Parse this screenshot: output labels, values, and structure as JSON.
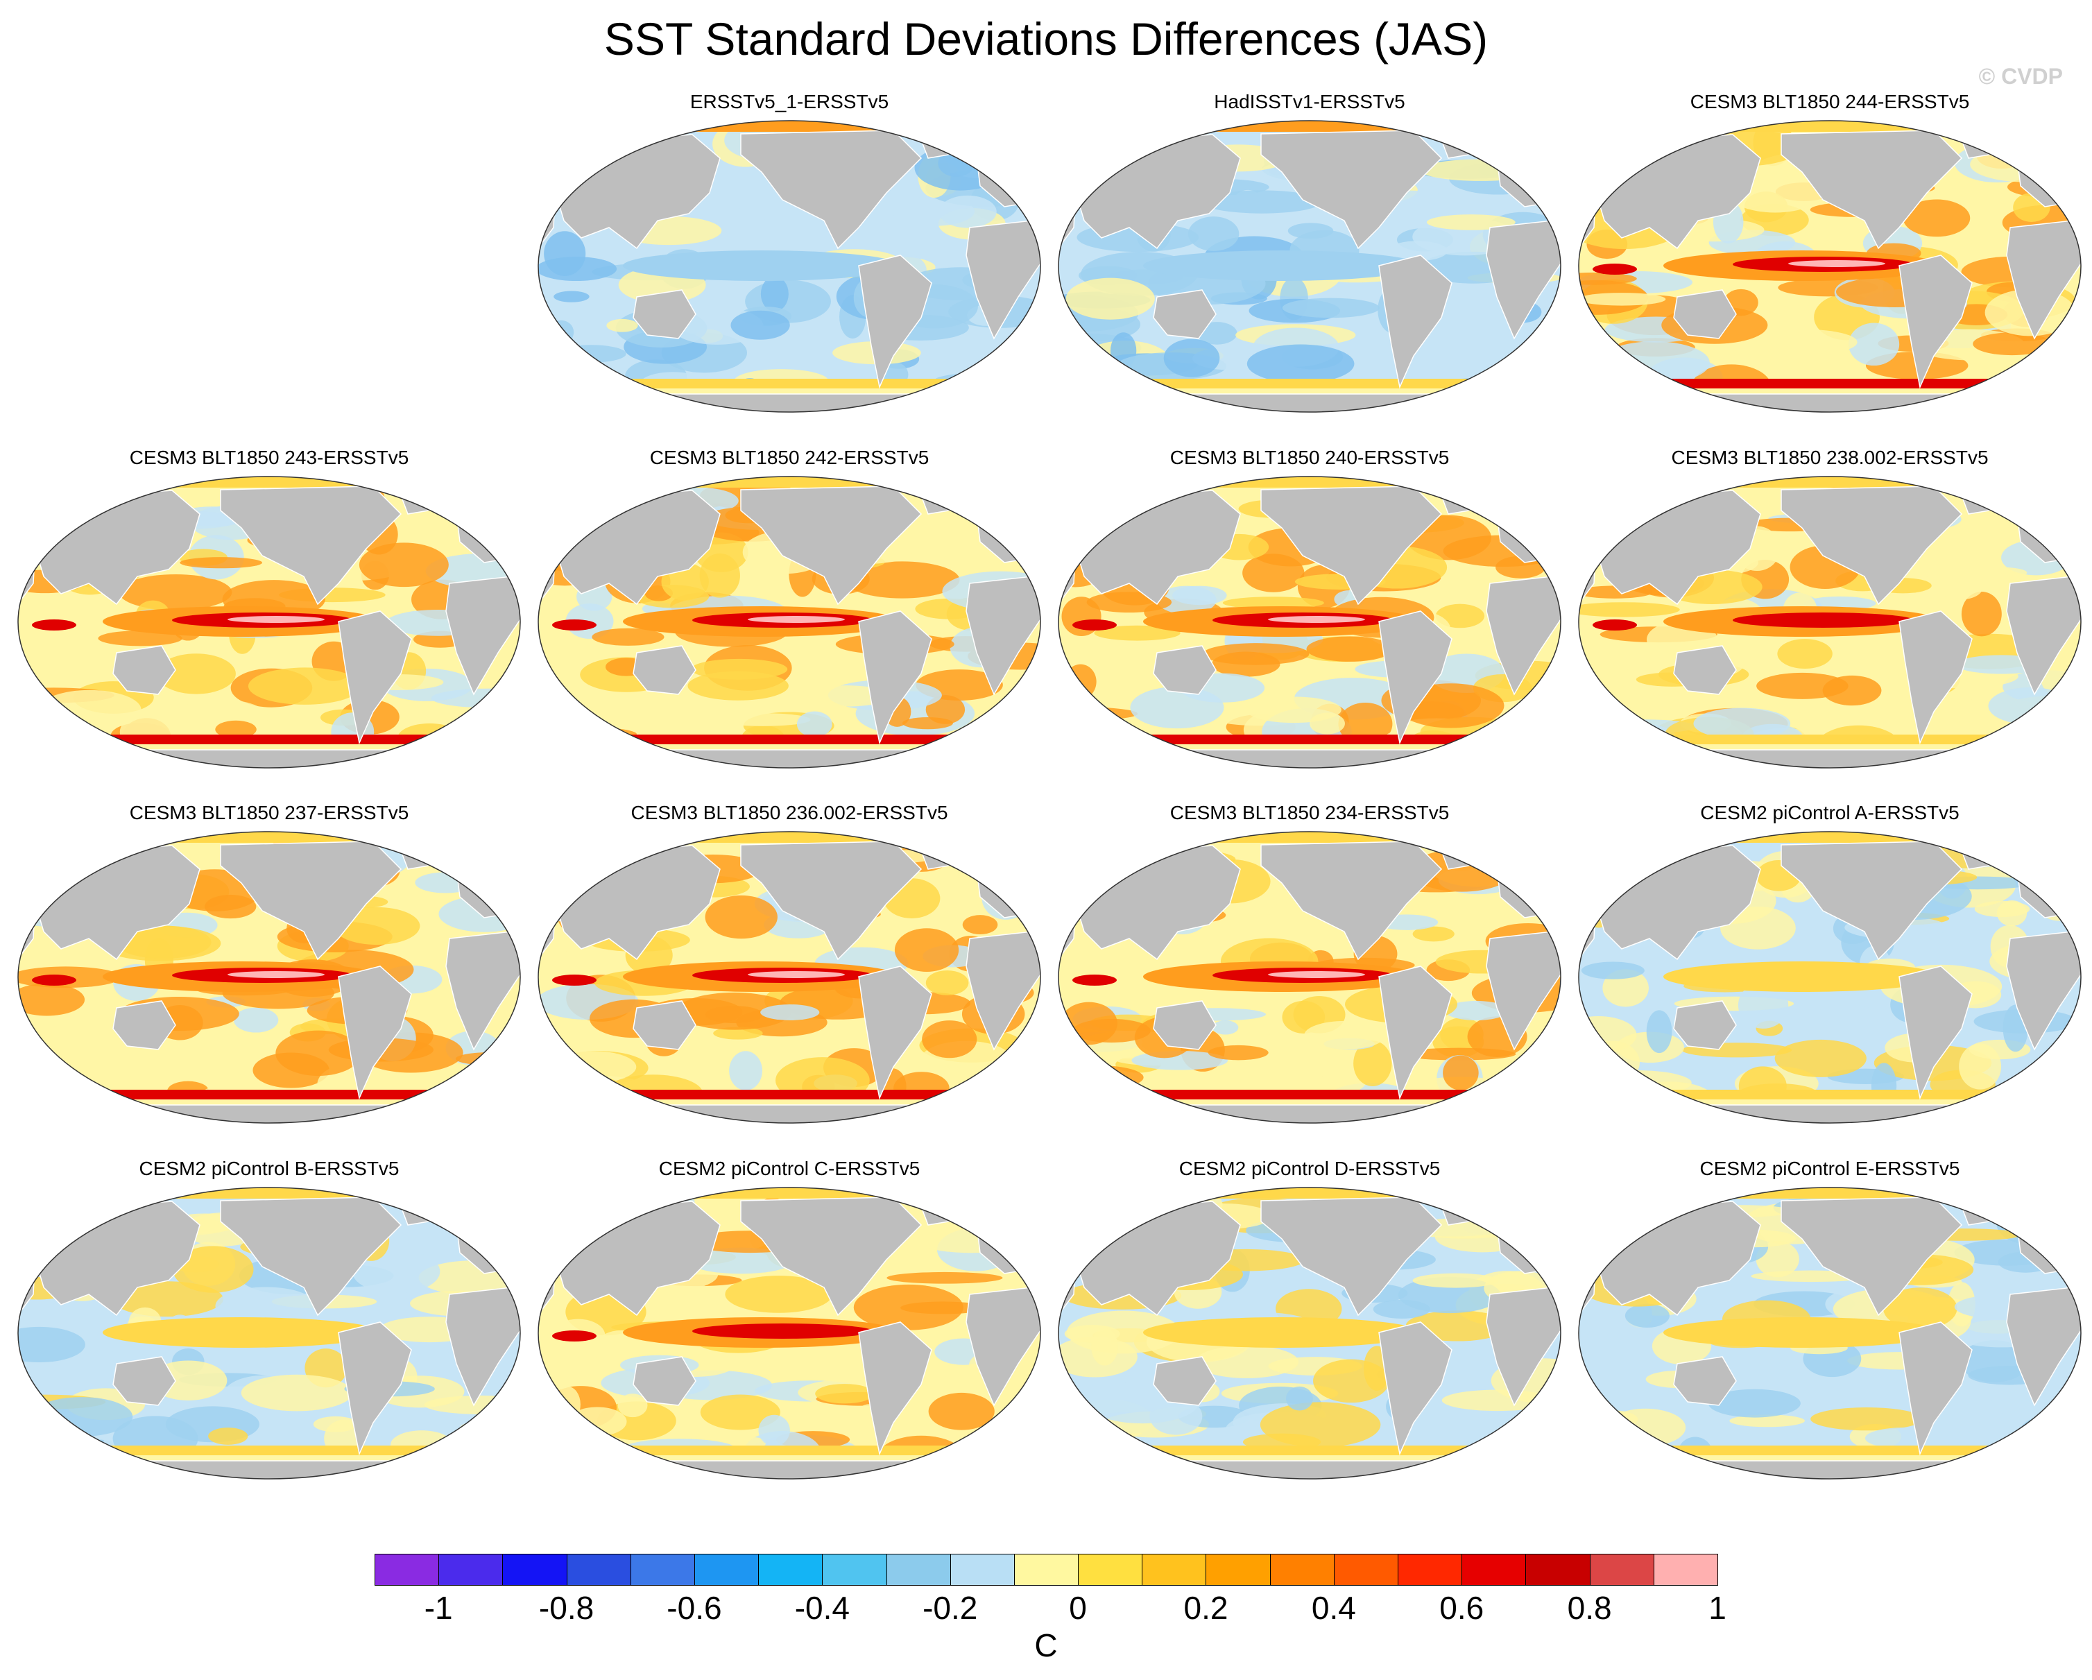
{
  "title": "SST Standard Deviations Differences (JAS)",
  "credit": "© CVDP",
  "units": "C",
  "colorbar": {
    "colors": [
      "#8a2be2",
      "#4b2bec",
      "#1414f5",
      "#2a4ee0",
      "#3c78e8",
      "#1e96f2",
      "#14b4f5",
      "#50c4f0",
      "#8ccbec",
      "#b9dff5",
      "#fff8a0",
      "#ffe040",
      "#ffc21e",
      "#ffa000",
      "#ff8000",
      "#ff5a00",
      "#ff2800",
      "#e60000",
      "#c80000",
      "#dc4646",
      "#ffb0b0"
    ],
    "ticks": [
      "-1",
      "-0.8",
      "-0.6",
      "-0.4",
      "-0.2",
      "0",
      "0.2",
      "0.4",
      "0.6",
      "0.8",
      "1"
    ],
    "ticks_numeric": [
      -1,
      -0.8,
      -0.6,
      -0.4,
      -0.2,
      0,
      0.2,
      0.4,
      0.6,
      0.8,
      1
    ]
  },
  "colors": {
    "land": "#bebebe",
    "coast": "#ffffff",
    "cold": "#9fd1f0",
    "cold_light": "#c6e4f6",
    "neutral": "#fff6a6",
    "warm_light": "#ffd84a",
    "warm": "#ff9d1e",
    "hot": "#e00000",
    "peak": "#ffb6b6"
  },
  "panels": [
    {
      "row": 0,
      "col": 1,
      "title": "ERSSTv5_1-ERSSTv5",
      "style": "cool"
    },
    {
      "row": 0,
      "col": 2,
      "title": "HadISSTv1-ERSSTv5",
      "style": "cool"
    },
    {
      "row": 0,
      "col": 3,
      "title": "CESM3 BLT1850 244-ERSSTv5",
      "style": "hot"
    },
    {
      "row": 1,
      "col": 0,
      "title": "CESM3 BLT1850 243-ERSSTv5",
      "style": "hot"
    },
    {
      "row": 1,
      "col": 1,
      "title": "CESM3 BLT1850 242-ERSSTv5",
      "style": "hot"
    },
    {
      "row": 1,
      "col": 2,
      "title": "CESM3 BLT1850 240-ERSSTv5",
      "style": "hot"
    },
    {
      "row": 1,
      "col": 3,
      "title": "CESM3 BLT1850 238.002-ERSSTv5",
      "style": "warm"
    },
    {
      "row": 2,
      "col": 0,
      "title": "CESM3 BLT1850 237-ERSSTv5",
      "style": "hot"
    },
    {
      "row": 2,
      "col": 1,
      "title": "CESM3 BLT1850 236.002-ERSSTv5",
      "style": "hot"
    },
    {
      "row": 2,
      "col": 2,
      "title": "CESM3 BLT1850 234-ERSSTv5",
      "style": "hot"
    },
    {
      "row": 2,
      "col": 3,
      "title": "CESM2 piControl A-ERSSTv5",
      "style": "mixed"
    },
    {
      "row": 3,
      "col": 0,
      "title": "CESM2 piControl B-ERSSTv5",
      "style": "mixed"
    },
    {
      "row": 3,
      "col": 1,
      "title": "CESM2 piControl C-ERSSTv5",
      "style": "warm"
    },
    {
      "row": 3,
      "col": 2,
      "title": "CESM2 piControl D-ERSSTv5",
      "style": "mixed"
    },
    {
      "row": 3,
      "col": 3,
      "title": "CESM2 piControl E-ERSSTv5",
      "style": "mixed"
    }
  ]
}
